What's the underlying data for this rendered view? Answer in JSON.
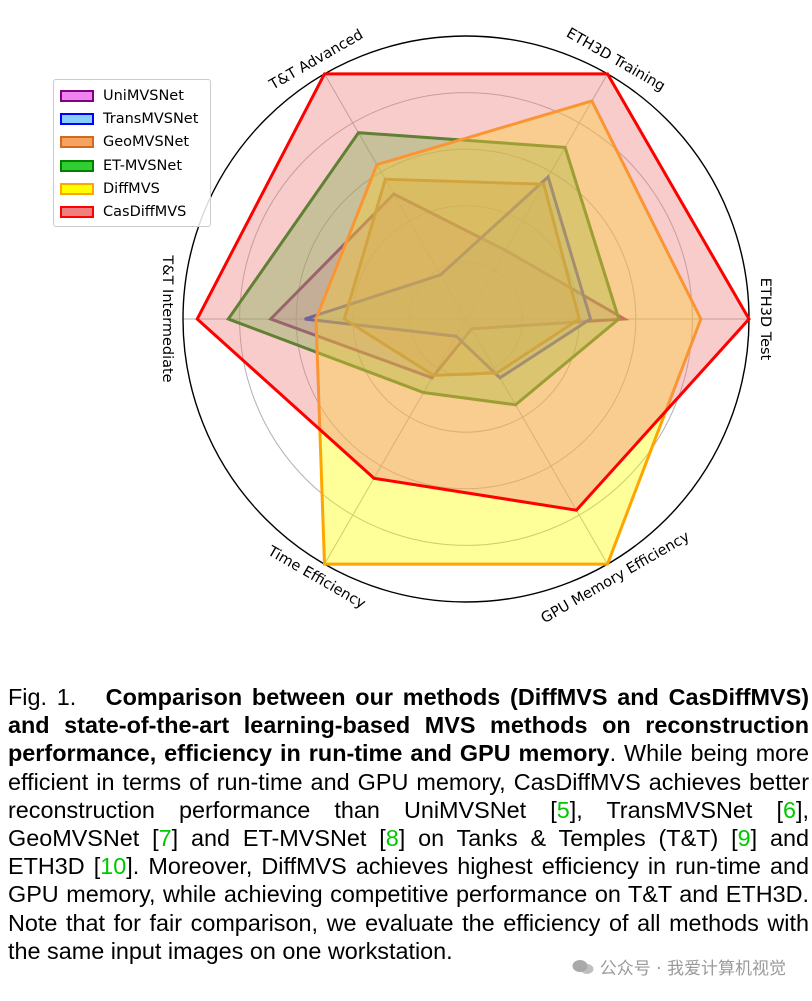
{
  "chart_data": {
    "type": "radar",
    "axes": [
      "ETH3D Test",
      "ETH3D Training",
      "T&T Advanced",
      "T&T Intermediate",
      "Time Efficiency",
      "GPU Memory Efficiency"
    ],
    "rlim": [
      0,
      1
    ],
    "grid": true,
    "legend_position": "top-left",
    "series": [
      {
        "name": "UniMVSNet",
        "color": "#800080",
        "fill": "#ee82ee",
        "values": [
          0.56,
          0.28,
          0.51,
          0.69,
          0.24,
          0.04
        ]
      },
      {
        "name": "TransMVSNet",
        "color": "#0000ff",
        "fill": "#87cefa",
        "values": [
          0.44,
          0.58,
          0.18,
          0.57,
          0.07,
          0.24
        ]
      },
      {
        "name": "GeoMVSNet",
        "color": "#d2691e",
        "fill": "#f4a460",
        "values": [
          0.4,
          0.55,
          0.57,
          0.43,
          0.23,
          0.22
        ]
      },
      {
        "name": "ET-MVSNet",
        "color": "#008000",
        "fill": "#32cd32",
        "values": [
          0.54,
          0.7,
          0.76,
          0.84,
          0.3,
          0.35
        ]
      },
      {
        "name": "DiffMVS",
        "color": "#ffa500",
        "fill": "#ffff00",
        "values": [
          0.83,
          0.89,
          0.63,
          0.53,
          1.0,
          1.0
        ]
      },
      {
        "name": "CasDiffMVS",
        "color": "#ff0000",
        "fill": "#f08080",
        "values": [
          1.0,
          1.0,
          1.0,
          0.95,
          0.65,
          0.78
        ]
      }
    ]
  },
  "caption": {
    "fig_label": "Fig. 1.",
    "bold_text": "Comparison between our methods (DiffMVS and CasDiffMVS) and state-of-the-art learning-based MVS methods on reconstruction performance, efficiency in run-time and GPU memory",
    "after_bold": ".",
    "seg1": " While being more efficient in terms of run-time and GPU memory, CasDiffMVS achieves better reconstruction performance than UniMVSNet [",
    "ref1": "5",
    "seg2": "], TransMVSNet [",
    "ref2": "6",
    "seg3": "], GeoMVSNet [",
    "ref3": "7",
    "seg4": "] and ET-MVSNet [",
    "ref4": "8",
    "seg5": "] on Tanks & Temples (T&T) [",
    "ref5": "9",
    "seg6": "] and ETH3D [",
    "ref6": "10",
    "seg7": "]. Moreover, DiffMVS achieves highest efficiency in run-time and GPU memory, while achieving competitive performance on T&T and ETH3D. Note that for fair comparison, we evaluate the efficiency of all methods with the same input images on one workstation."
  },
  "watermark": {
    "text": "公众号 · 我爱计算机视觉",
    "icon": "wechat-icon"
  }
}
